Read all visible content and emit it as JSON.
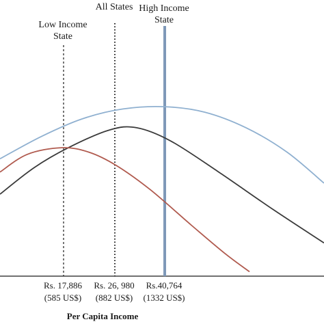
{
  "chart_data": {
    "type": "line",
    "xlabel": "Per Capita Income",
    "ylabel": "",
    "xlim": [
      0,
      474
    ],
    "ylim": [
      0,
      1
    ],
    "grid": false,
    "reference_lines": [
      {
        "label_lines": [
          "Low Income",
          "State"
        ],
        "x": 93,
        "style": "dashed",
        "color": "#1a1a1a"
      },
      {
        "label_lines": [
          "All States"
        ],
        "x": 168,
        "style": "dotted",
        "color": "#1a1a1a"
      },
      {
        "label_lines": [
          "High Income",
          "State"
        ],
        "x": 241,
        "style": "solid",
        "color": "#7f99b8"
      }
    ],
    "ticks": [
      {
        "x": 93,
        "line1": "Rs. 17,886",
        "line2": "(585 US$)"
      },
      {
        "x": 168,
        "line1": "Rs. 26, 980",
        "line2": "(882 US$)"
      },
      {
        "x": 241,
        "line1": "Rs.40,764",
        "line2": "(1332 US$)"
      }
    ],
    "series": [
      {
        "color": "#8fb0d0",
        "x": [
          0,
          60,
          120,
          180,
          241,
          300,
          360,
          420,
          474
        ],
        "y": [
          0.53,
          0.63,
          0.71,
          0.755,
          0.765,
          0.74,
          0.67,
          0.56,
          0.42
        ]
      },
      {
        "color": "#3a3a3a",
        "x": [
          0,
          50,
          100,
          160,
          200,
          250,
          320,
          400,
          474
        ],
        "y": [
          0.37,
          0.49,
          0.58,
          0.66,
          0.67,
          0.61,
          0.47,
          0.3,
          0.15
        ]
      },
      {
        "color": "#b05a4e",
        "x": [
          0,
          40,
          90,
          130,
          170,
          220,
          280,
          330,
          365
        ],
        "y": [
          0.47,
          0.55,
          0.58,
          0.56,
          0.5,
          0.39,
          0.23,
          0.1,
          0.02
        ]
      }
    ]
  }
}
